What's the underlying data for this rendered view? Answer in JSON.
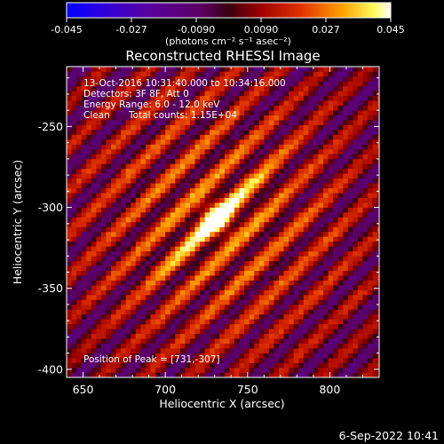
{
  "colorbar": {
    "ticks": [
      "-0.045",
      "-0.027",
      "-0.0090",
      "0.0090",
      "0.027",
      "0.045"
    ],
    "vmin": -0.045,
    "vmax": 0.045,
    "unit_label": "(photons cm⁻² s⁻¹ asec⁻²)"
  },
  "chart_data": {
    "type": "heatmap",
    "title": "Reconstructed RHESSI Image",
    "xlabel": "Heliocentric X (arcsec)",
    "ylabel": "Heliocentric Y (arcsec)",
    "xlim": [
      640,
      830
    ],
    "ylim": [
      -405,
      -213
    ],
    "xticks": [
      650,
      700,
      750,
      800
    ],
    "yticks": [
      -250,
      -300,
      -350,
      -400
    ],
    "peak": [
      731,
      -307
    ],
    "annotations": {
      "line1": "13-Oct-2016 10:31:40.000 to 10:34:16.000",
      "line2": "Detectors: 3F 8F, Att 0",
      "line3": "Energy Range: 6.0 - 12.0 keV",
      "line4_a": "Clean",
      "line4_b": "Total counts: 1.15E+04",
      "peak_text": "Position of Peak = [731,-307]"
    }
  },
  "footer": {
    "date": "6-Sep-2022 10:41"
  },
  "colors": {
    "background": "#000000",
    "axes": "#ffffff"
  }
}
